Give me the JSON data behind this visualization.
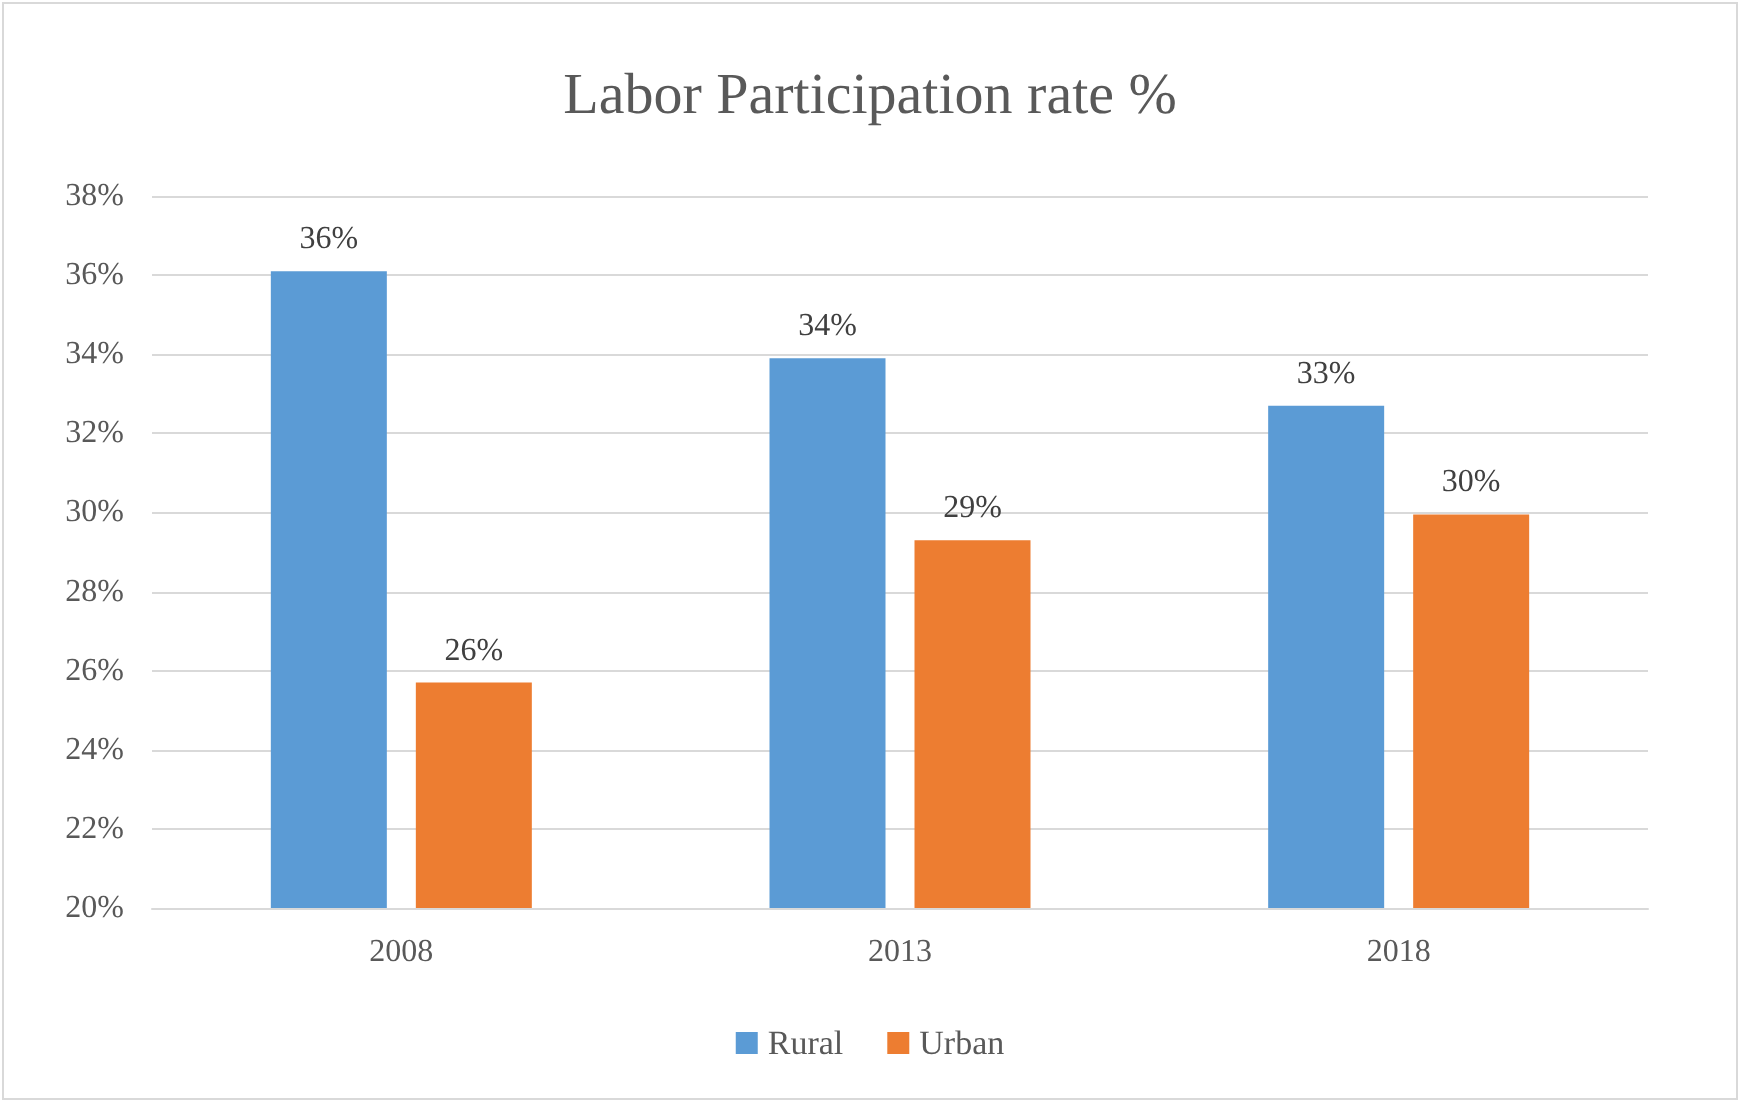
{
  "chart_data": {
    "type": "bar",
    "title": "Labor Participation rate %",
    "categories": [
      "2008",
      "2013",
      "2018"
    ],
    "series": [
      {
        "name": "Rural",
        "color": "#5b9bd5",
        "values": [
          36.1,
          33.9,
          32.7
        ],
        "value_labels": [
          "36%",
          "34%",
          "33%"
        ]
      },
      {
        "name": "Urban",
        "color": "#ed7d31",
        "values": [
          25.7,
          29.3,
          29.95
        ],
        "value_labels": [
          "26%",
          "29%",
          "30%"
        ]
      }
    ],
    "ylim": [
      20,
      38
    ],
    "yticks": [
      {
        "value": 20,
        "label": "20%"
      },
      {
        "value": 22,
        "label": "22%"
      },
      {
        "value": 24,
        "label": "24%"
      },
      {
        "value": 26,
        "label": "26%"
      },
      {
        "value": 28,
        "label": "28%"
      },
      {
        "value": 30,
        "label": "30%"
      },
      {
        "value": 32,
        "label": "32%"
      },
      {
        "value": 34,
        "label": "34%"
      },
      {
        "value": 36,
        "label": "36%"
      },
      {
        "value": 38,
        "label": "38%"
      }
    ],
    "grid": "y",
    "legend": "bottom"
  }
}
